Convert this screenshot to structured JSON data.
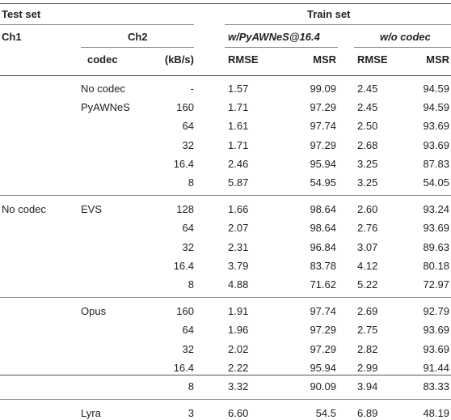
{
  "header": {
    "test_set": "Test set",
    "train_set": "Train set",
    "ch1": "Ch1",
    "ch2": "Ch2",
    "train_a": "w/PyAWNeS@16.4",
    "train_b": "w/o codec",
    "codec": "codec",
    "kbs": "(kB/s)",
    "rmse_a": "RMSE",
    "msr_a": "MSR",
    "rmse_b": "RMSE",
    "msr_b": "MSR"
  },
  "groups": [
    {
      "ch1": "",
      "rows": [
        {
          "codec": "No codec",
          "kbs": "-",
          "rmse_a": "1.57",
          "msr_a": "99.09",
          "rmse_b": "2.45",
          "msr_b": "94.59"
        },
        {
          "codec": "PyAWNeS",
          "kbs": "160",
          "rmse_a": "1.71",
          "msr_a": "97.29",
          "rmse_b": "2.45",
          "msr_b": "94.59"
        },
        {
          "codec": "",
          "kbs": "64",
          "rmse_a": "1.61",
          "msr_a": "97.74",
          "rmse_b": "2.50",
          "msr_b": "93.69"
        },
        {
          "codec": "",
          "kbs": "32",
          "rmse_a": "1.71",
          "msr_a": "97.29",
          "rmse_b": "2.68",
          "msr_b": "93.69"
        },
        {
          "codec": "",
          "kbs": "16.4",
          "rmse_a": "2.46",
          "msr_a": "95.94",
          "rmse_b": "3.25",
          "msr_b": "87.83"
        },
        {
          "codec": "",
          "kbs": "8",
          "rmse_a": "5.87",
          "msr_a": "54.95",
          "rmse_b": "3.25",
          "msr_b": "54.05"
        }
      ]
    },
    {
      "ch1": "No codec",
      "rows": [
        {
          "codec": "EVS",
          "kbs": "128",
          "rmse_a": "1.66",
          "msr_a": "98.64",
          "rmse_b": "2.60",
          "msr_b": "93.24"
        },
        {
          "codec": "",
          "kbs": "64",
          "rmse_a": "2.07",
          "msr_a": "98.64",
          "rmse_b": "2.76",
          "msr_b": "93.69"
        },
        {
          "codec": "",
          "kbs": "32",
          "rmse_a": "2.31",
          "msr_a": "96.84",
          "rmse_b": "3.07",
          "msr_b": "89.63"
        },
        {
          "codec": "",
          "kbs": "16.4",
          "rmse_a": "3.79",
          "msr_a": "83.78",
          "rmse_b": "4.12",
          "msr_b": "80.18"
        },
        {
          "codec": "",
          "kbs": "8",
          "rmse_a": "4.88",
          "msr_a": "71.62",
          "rmse_b": "5.22",
          "msr_b": "72.97"
        }
      ]
    },
    {
      "ch1": "",
      "rows": [
        {
          "codec": "Opus",
          "kbs": "160",
          "rmse_a": "1.91",
          "msr_a": "97.74",
          "rmse_b": "2.69",
          "msr_b": "92.79"
        },
        {
          "codec": "",
          "kbs": "64",
          "rmse_a": "1.96",
          "msr_a": "97.29",
          "rmse_b": "2.75",
          "msr_b": "93.69"
        },
        {
          "codec": "",
          "kbs": "32",
          "rmse_a": "2.02",
          "msr_a": "97.29",
          "rmse_b": "2.82",
          "msr_b": "93.69"
        },
        {
          "codec": "",
          "kbs": "16.4",
          "rmse_a": "2.22",
          "msr_a": "95.94",
          "rmse_b": "2.99",
          "msr_b": "91.44"
        },
        {
          "codec": "",
          "kbs": "8",
          "rmse_a": "3.32",
          "msr_a": "90.09",
          "rmse_b": "3.94",
          "msr_b": "83.33"
        }
      ]
    },
    {
      "ch1": "",
      "rows": [
        {
          "codec": "Lyra",
          "kbs": "3",
          "rmse_a": "6.60",
          "msr_a": "54.5",
          "rmse_b": "6.89",
          "msr_b": "48.19"
        }
      ]
    }
  ]
}
